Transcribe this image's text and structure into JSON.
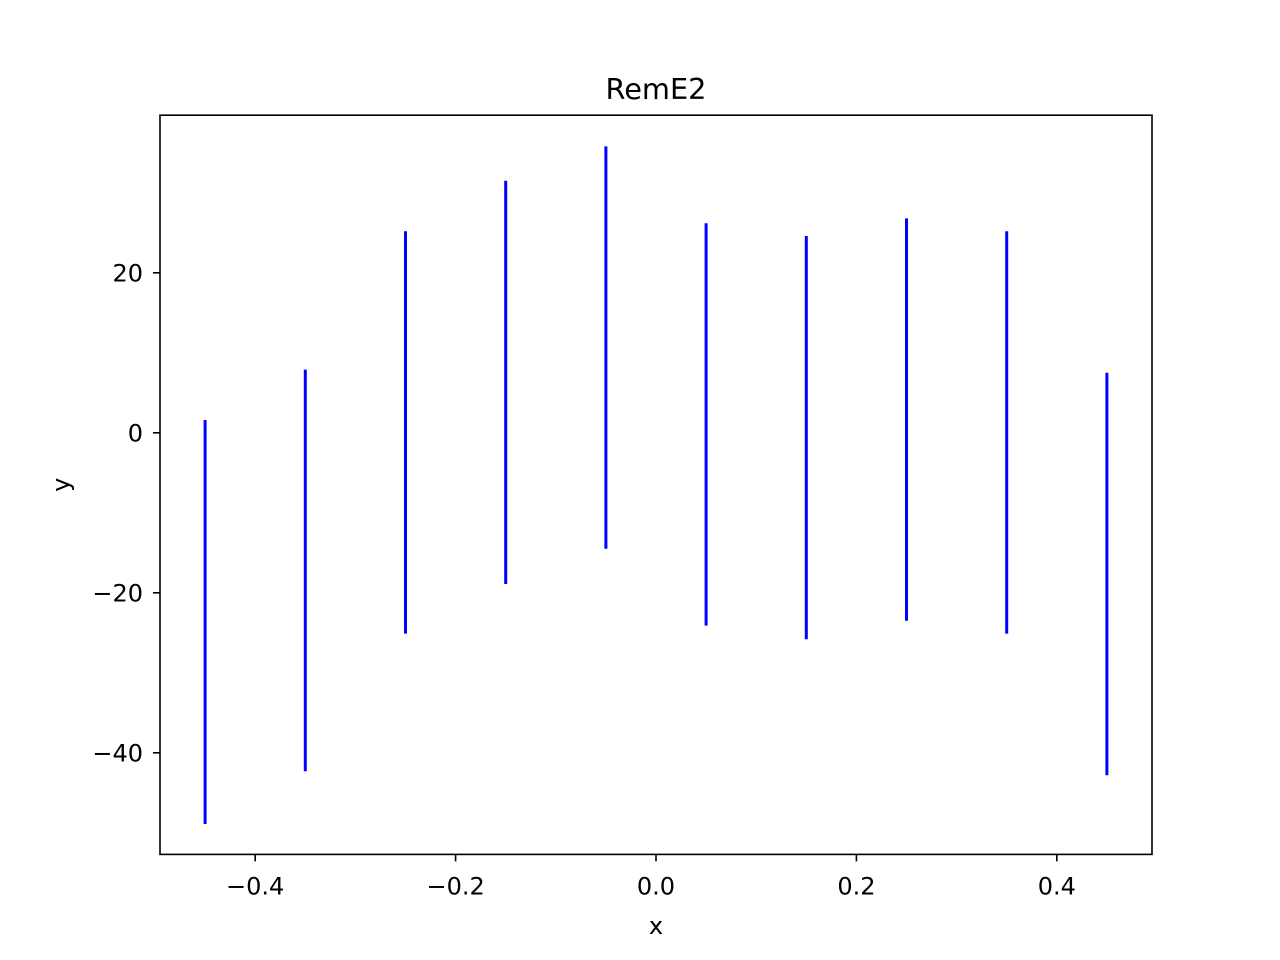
{
  "chart_data": {
    "type": "errorbar",
    "title": "RemE2",
    "xlabel": "x",
    "ylabel": "y",
    "xlim": [
      -0.495,
      0.495
    ],
    "ylim": [
      -52.7,
      39.7
    ],
    "xticks": [
      -0.4,
      -0.2,
      0.0,
      0.2,
      0.4
    ],
    "xtick_labels": [
      "−0.4",
      "−0.2",
      "0.0",
      "0.2",
      "0.4"
    ],
    "yticks": [
      -40,
      -20,
      0,
      20
    ],
    "ytick_labels": [
      "−40",
      "−20",
      "0",
      "20"
    ],
    "grid": false,
    "legend": false,
    "color": "#0000ff",
    "series": [
      {
        "x": [
          -0.45,
          -0.35,
          -0.25,
          -0.15,
          -0.05,
          0.05,
          0.15,
          0.25,
          0.35,
          0.45
        ],
        "y_low": [
          -48.9,
          -42.3,
          -25.1,
          -18.9,
          -14.5,
          -24.1,
          -25.8,
          -23.5,
          -25.1,
          -42.8
        ],
        "y_high": [
          1.6,
          7.9,
          25.2,
          31.5,
          35.8,
          26.2,
          24.6,
          26.8,
          25.2,
          7.5
        ]
      }
    ]
  }
}
